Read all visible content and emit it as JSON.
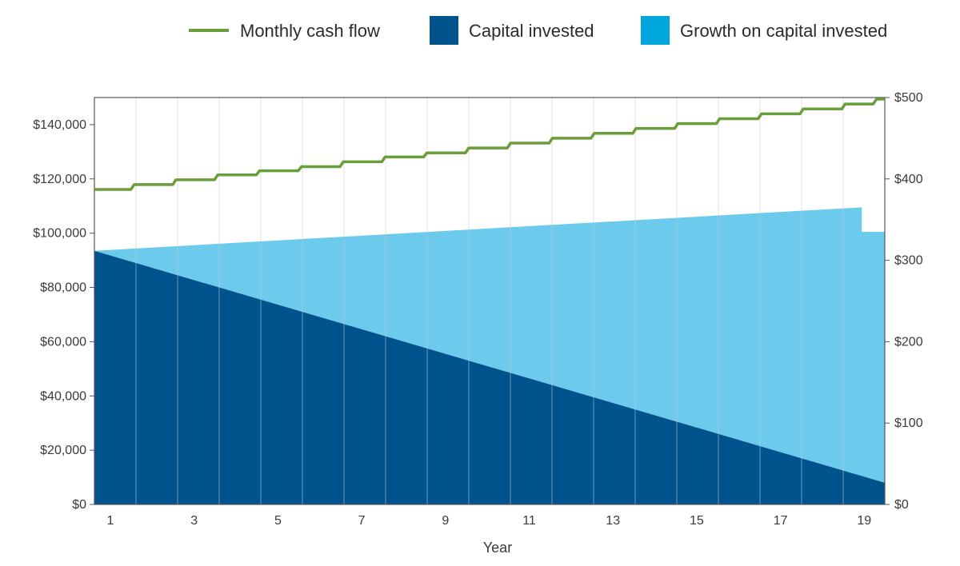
{
  "chart_data": {
    "type": "area",
    "title": "",
    "xlabel": "Year",
    "ylabel_left": "",
    "ylabel_right": "",
    "xlim": [
      1,
      19.9
    ],
    "ylim_left": [
      0,
      150000
    ],
    "ylim_right": [
      0,
      500
    ],
    "grid": "vertical",
    "legend_position": "top-right",
    "x_tick_labels": [
      "1",
      "3",
      "5",
      "7",
      "9",
      "11",
      "13",
      "15",
      "17",
      "19"
    ],
    "y_left_tick_labels": [
      "$0",
      "$20,000",
      "$40,000",
      "$60,000",
      "$80,000",
      "$100,000",
      "$120,000",
      "$140,000"
    ],
    "y_right_tick_labels": [
      "$0",
      "$100",
      "$200",
      "$300",
      "$400",
      "$500"
    ],
    "legend": [
      {
        "label": "Monthly cash flow",
        "kind": "line",
        "color": "#6a9e3a"
      },
      {
        "label": "Capital invested",
        "kind": "square",
        "color": "#00538c"
      },
      {
        "label": "Growth on capital invested",
        "kind": "square",
        "color": "#00a6de"
      }
    ],
    "series": [
      {
        "name": "Capital invested",
        "axis": "left",
        "color": "#00538c",
        "x": [
          1,
          19.9
        ],
        "values": [
          93500,
          8000
        ]
      },
      {
        "name": "Growth on capital invested",
        "axis": "left",
        "color": "#6ccbec",
        "stack_total_x": [
          1,
          19.35,
          19.35,
          19.9
        ],
        "stack_total_values": [
          93500,
          109500,
          100500,
          100500
        ]
      },
      {
        "name": "Monthly cash flow",
        "axis": "right",
        "color": "#6a9e3a",
        "step": true,
        "x": [
          1,
          1.95,
          2.95,
          3.95,
          4.95,
          5.95,
          6.95,
          7.95,
          8.95,
          9.95,
          10.95,
          11.95,
          12.95,
          13.95,
          14.95,
          15.95,
          16.95,
          17.95,
          18.95,
          19.7,
          19.9
        ],
        "values": [
          387,
          393,
          399,
          405,
          410,
          415,
          421,
          427,
          432,
          438,
          444,
          450,
          456,
          462,
          468,
          474,
          480,
          486,
          492,
          498,
          498
        ]
      }
    ]
  }
}
